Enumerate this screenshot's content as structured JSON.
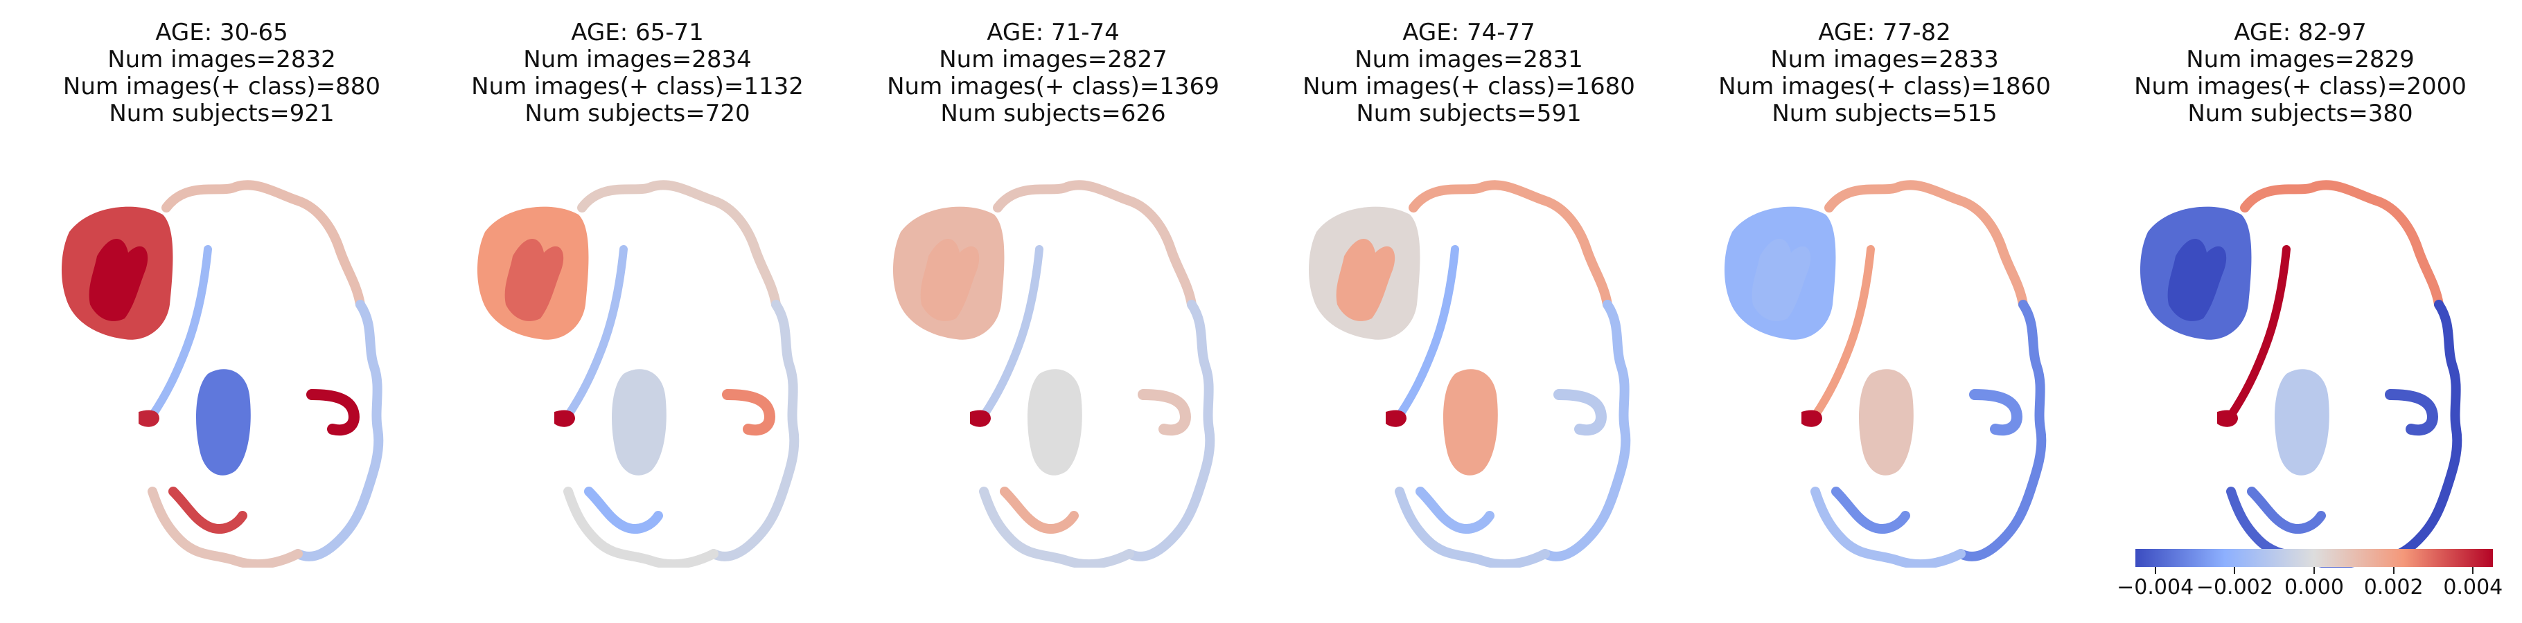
{
  "panels": [
    {
      "age": "AGE: 30-65",
      "num_images": "Num images=2832",
      "num_images_pos": "Num images(+ class)=880",
      "num_subjects": "Num subjects=921",
      "region_values": {
        "left_temporal": 0.0035,
        "left_hippo_core": 0.0045,
        "insula": -0.0018,
        "central_mass": -0.0035,
        "right_temporal_hook": 0.0045,
        "cortex_top": 0.001,
        "cortex_right": -0.0012,
        "cortex_bottom": 0.0008,
        "lower_left_strip": 0.0035,
        "small_left": 0.004
      }
    },
    {
      "age": "AGE: 65-71",
      "num_images": "Num images=2834",
      "num_images_pos": "Num images(+ class)=1132",
      "num_subjects": "Num subjects=720",
      "region_values": {
        "left_temporal": 0.0022,
        "left_hippo_core": 0.003,
        "insula": -0.0015,
        "central_mass": -0.0005,
        "right_temporal_hook": 0.0025,
        "cortex_top": 0.0006,
        "cortex_right": -0.0006,
        "cortex_bottom": 0.0,
        "lower_left_strip": -0.002,
        "small_left": 0.0045
      }
    },
    {
      "age": "AGE: 71-74",
      "num_images": "Num images=2827",
      "num_images_pos": "Num images(+ class)=1369",
      "num_subjects": "Num subjects=626",
      "region_values": {
        "left_temporal": 0.0012,
        "left_hippo_core": 0.0015,
        "insula": -0.001,
        "central_mass": 0.0,
        "right_temporal_hook": 0.0008,
        "cortex_top": 0.0008,
        "cortex_right": -0.0008,
        "cortex_bottom": -0.0006,
        "lower_left_strip": 0.0015,
        "small_left": 0.0045
      }
    },
    {
      "age": "AGE: 74-77",
      "num_images": "Num images=2831",
      "num_images_pos": "Num images(+ class)=1680",
      "num_subjects": "Num subjects=591",
      "region_values": {
        "left_temporal": 0.0002,
        "left_hippo_core": 0.0018,
        "insula": -0.002,
        "central_mass": 0.0018,
        "right_temporal_hook": -0.001,
        "cortex_top": 0.0018,
        "cortex_right": -0.0016,
        "cortex_bottom": -0.001,
        "lower_left_strip": -0.0018,
        "small_left": 0.0045
      }
    },
    {
      "age": "AGE: 77-82",
      "num_images": "Num images=2833",
      "num_images_pos": "Num images(+ class)=1860",
      "num_subjects": "Num subjects=515",
      "region_values": {
        "left_temporal": -0.002,
        "left_hippo_core": -0.0018,
        "insula": 0.002,
        "central_mass": 0.0008,
        "right_temporal_hook": -0.003,
        "cortex_top": 0.0018,
        "cortex_right": -0.0032,
        "cortex_bottom": -0.0015,
        "lower_left_strip": -0.003,
        "small_left": 0.0045
      }
    },
    {
      "age": "AGE: 82-97",
      "num_images": "Num images=2829",
      "num_images_pos": "Num images(+ class)=2000",
      "num_subjects": "Num subjects=380",
      "region_values": {
        "left_temporal": -0.0038,
        "left_hippo_core": -0.0045,
        "insula": 0.0045,
        "central_mass": -0.001,
        "right_temporal_hook": -0.0042,
        "cortex_top": 0.0025,
        "cortex_right": -0.0045,
        "cortex_bottom": -0.004,
        "lower_left_strip": -0.0035,
        "small_left": 0.0045
      }
    }
  ],
  "colorbar": {
    "colormap": "coolwarm",
    "range": [
      -0.0045,
      0.0045
    ],
    "tick_values": [
      -0.004,
      -0.002,
      0.0,
      0.002,
      0.004
    ],
    "tick_labels": [
      "−0.004",
      "−0.002",
      "0.000",
      "0.002",
      "0.004"
    ]
  }
}
